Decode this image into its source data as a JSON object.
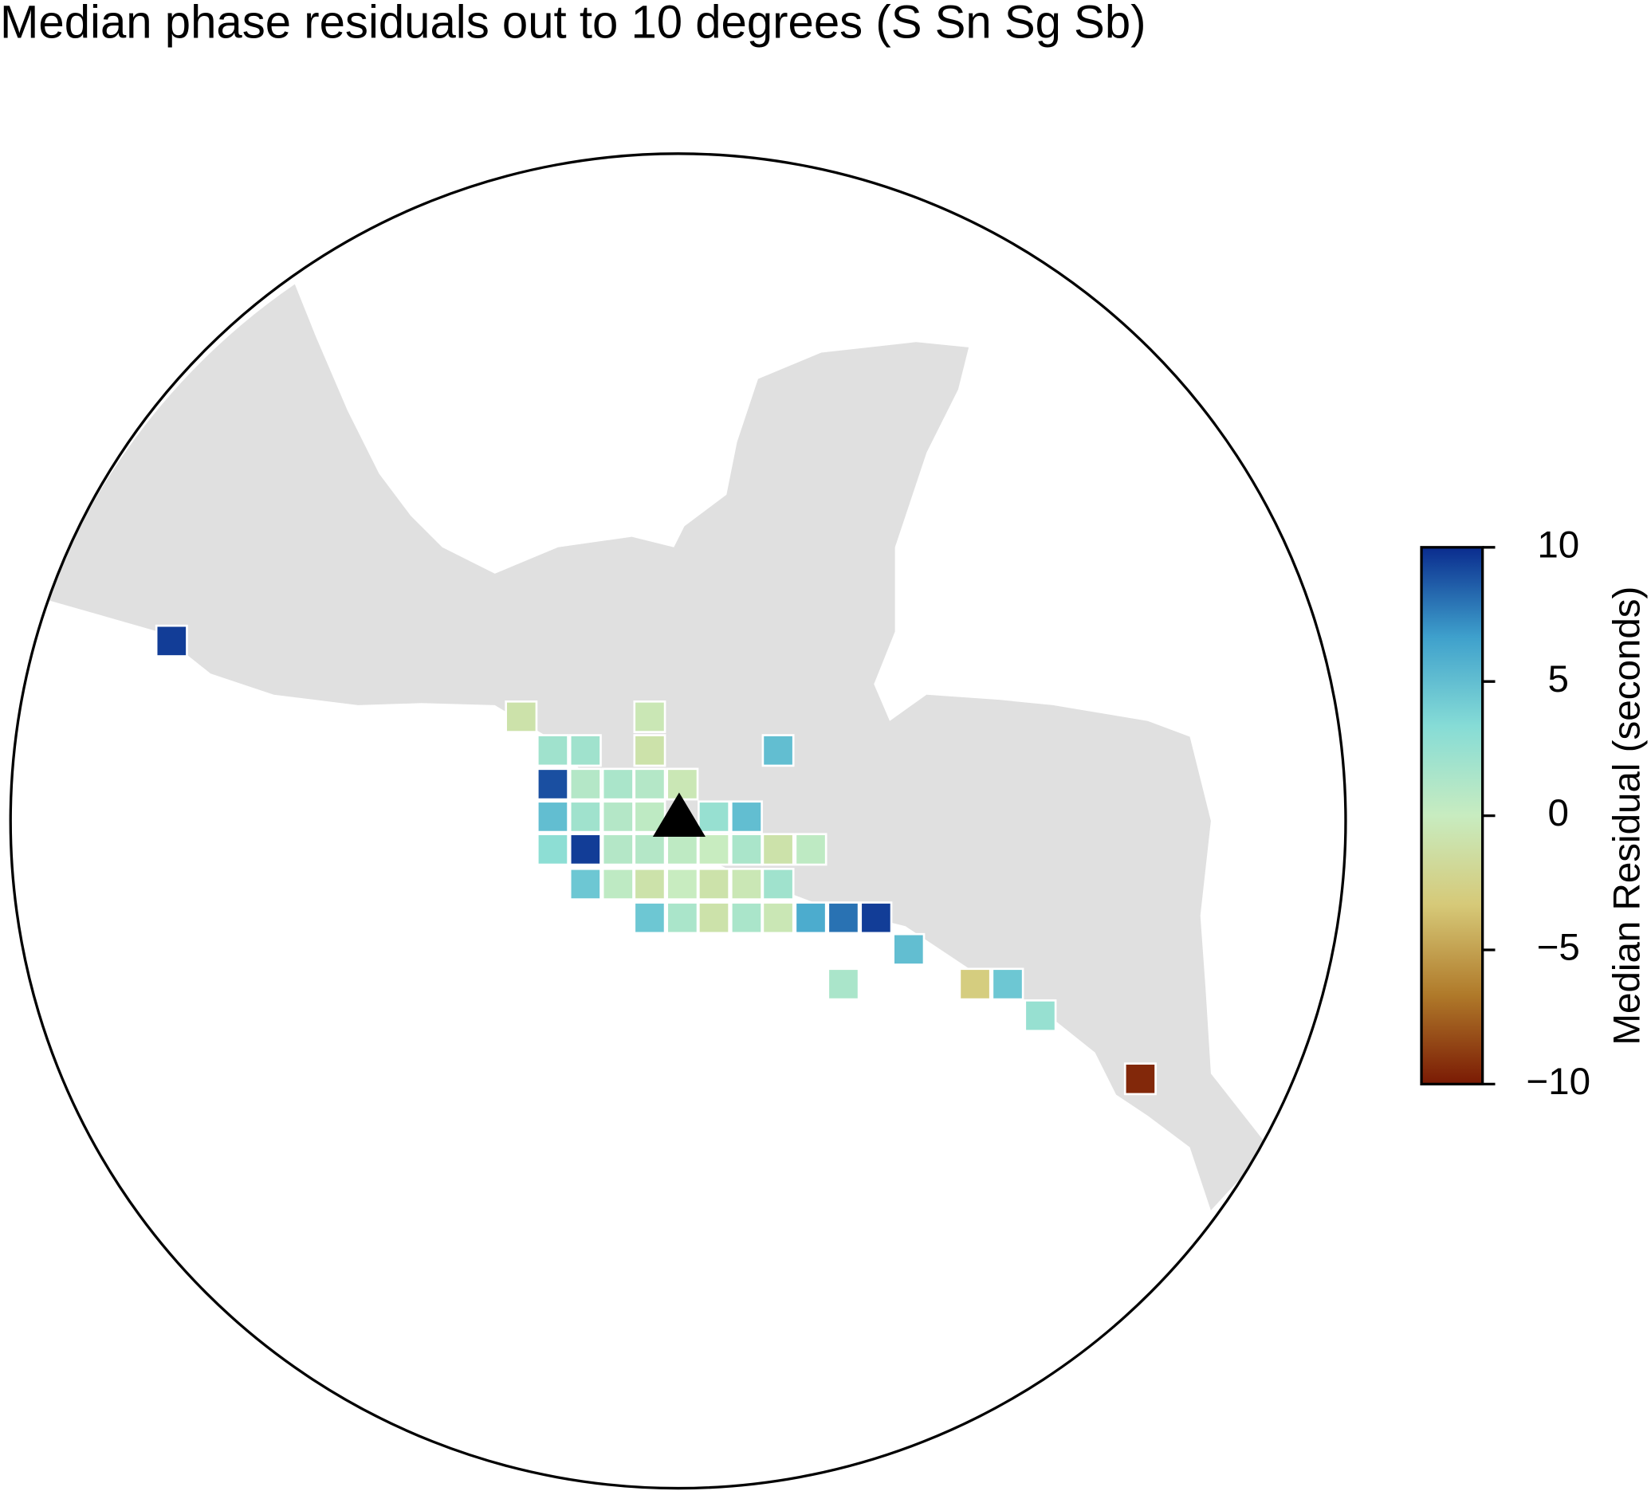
{
  "chart_data": {
    "type": "map",
    "title": "Median phase residuals out to 10 degrees (S Sn Sg Sb)",
    "colorbar_label": "Median Residual (seconds)",
    "clim": [
      -10,
      10
    ],
    "cticks": [
      {
        "value": -10,
        "label": "−10"
      },
      {
        "value": -5,
        "label": "−5"
      },
      0,
      5,
      10
    ],
    "colorscale": [
      "#7a1a04",
      "#b07a2a",
      "#d6c978",
      "#c8ecc0",
      "#86dcd6",
      "#3ea0cc",
      "#0a2c8e"
    ],
    "land_color": "#e0e0e0",
    "values": [
      9.5,
      -1,
      -0.5,
      2,
      2,
      -1,
      5,
      9,
      1,
      1.5,
      1,
      -0.5,
      5,
      2,
      1,
      0.5,
      2.5,
      5,
      3,
      9.5,
      1,
      1,
      0.5,
      0,
      1.5,
      -1,
      0.5,
      4.5,
      0.5,
      -1,
      0,
      -1,
      -0.5,
      2,
      4.5,
      1.5,
      -1,
      1.5,
      -0.5,
      6,
      8,
      9.5,
      5,
      1.5,
      -3,
      4.5,
      2.5,
      -9.5
    ]
  }
}
